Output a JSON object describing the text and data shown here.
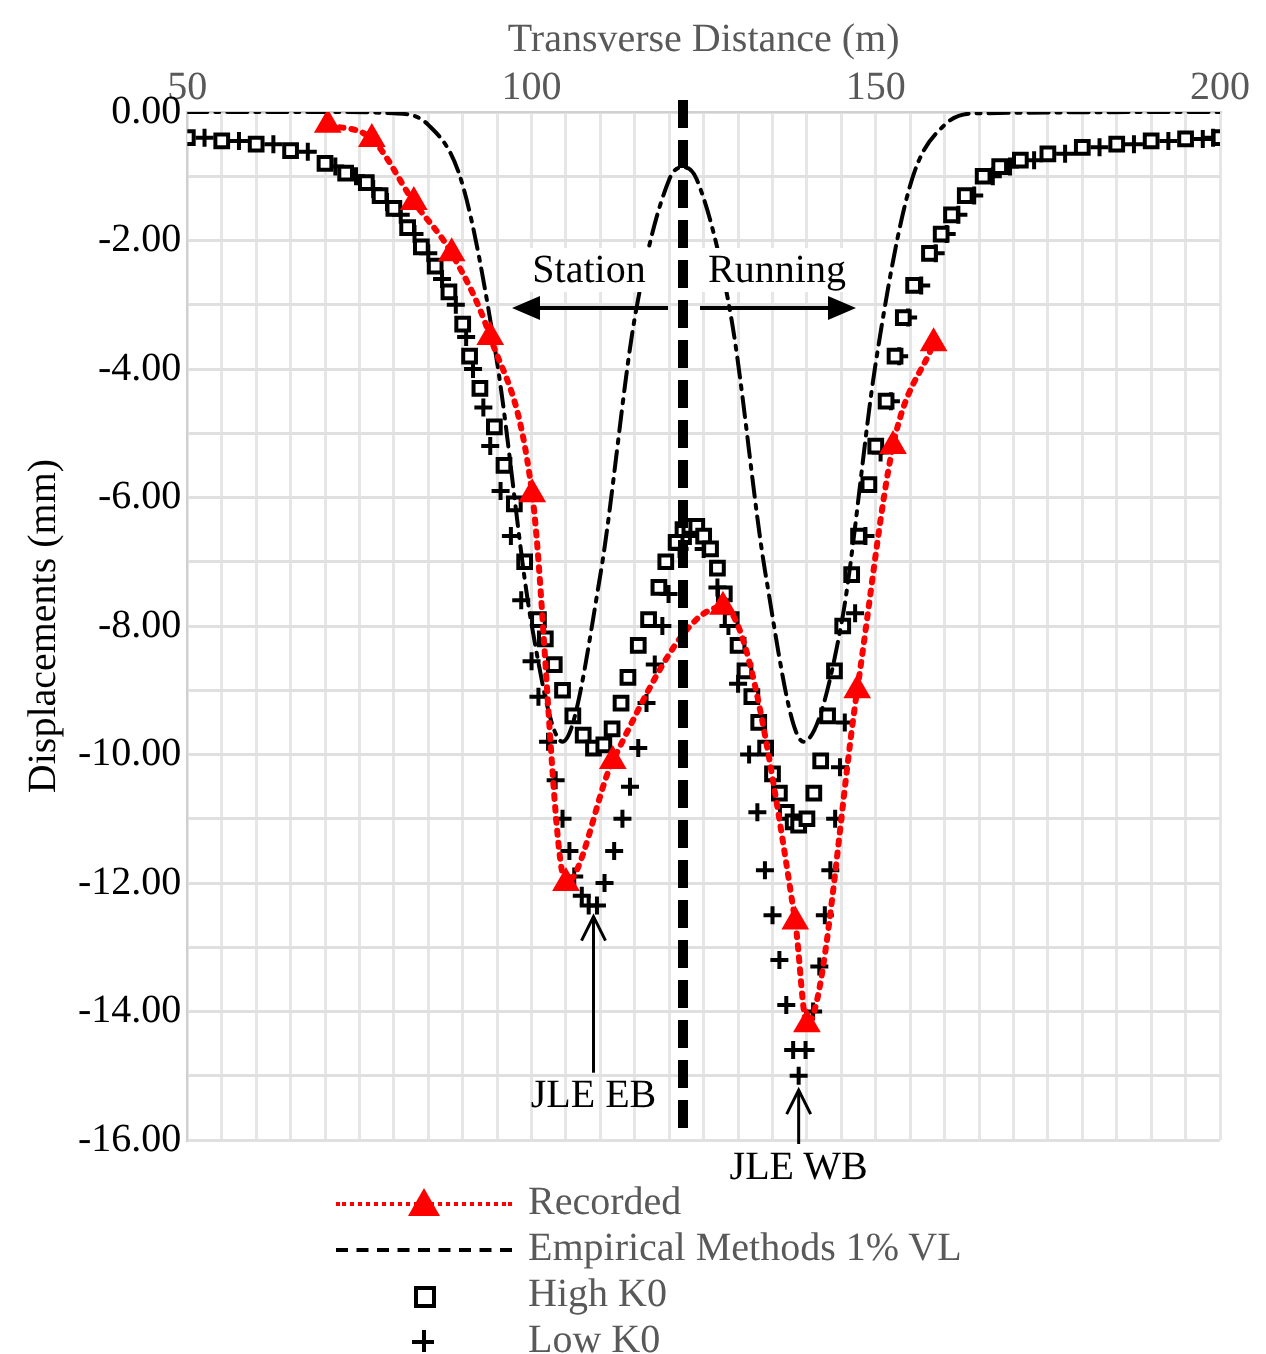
{
  "chart_data": {
    "type": "line",
    "xlabel": "Transverse Distance (m)",
    "ylabel": "Displacements (mm)",
    "xlim": [
      50,
      200
    ],
    "xticks": [
      50,
      {
        "value": 55,
        "label": null
      },
      {
        "value": 60,
        "label": null
      },
      {
        "value": 65,
        "label": null
      },
      {
        "value": 70,
        "label": null
      },
      {
        "value": 75,
        "label": null
      },
      {
        "value": 80,
        "label": null
      },
      {
        "value": 85,
        "label": null
      },
      {
        "value": 90,
        "label": null
      },
      {
        "value": 95,
        "label": null
      },
      100,
      {
        "value": 105,
        "label": null
      },
      {
        "value": 110,
        "label": null
      },
      {
        "value": 115,
        "label": null
      },
      {
        "value": 120,
        "label": null
      },
      {
        "value": 125,
        "label": null
      },
      {
        "value": 130,
        "label": null
      },
      {
        "value": 135,
        "label": null
      },
      {
        "value": 140,
        "label": null
      },
      {
        "value": 145,
        "label": null
      },
      150,
      {
        "value": 155,
        "label": null
      },
      {
        "value": 160,
        "label": null
      },
      {
        "value": 165,
        "label": null
      },
      {
        "value": 170,
        "label": null
      },
      {
        "value": 175,
        "label": null
      },
      {
        "value": 180,
        "label": null
      },
      {
        "value": 185,
        "label": null
      },
      {
        "value": 190,
        "label": null
      },
      {
        "value": 195,
        "label": null
      },
      200
    ],
    "ylim": [
      -16,
      0
    ],
    "yticks": [
      {
        "value": 0,
        "label": "0.00"
      },
      {
        "value": -1,
        "label": null
      },
      {
        "value": -2,
        "label": "-2.00"
      },
      {
        "value": -3,
        "label": null
      },
      {
        "value": -4,
        "label": "-4.00"
      },
      {
        "value": -5,
        "label": null
      },
      {
        "value": -6,
        "label": "-6.00"
      },
      {
        "value": -7,
        "label": null
      },
      {
        "value": -8,
        "label": "-8.00"
      },
      {
        "value": -9,
        "label": null
      },
      {
        "value": -10,
        "label": "-10.00"
      },
      {
        "value": -11,
        "label": null
      },
      {
        "value": -12,
        "label": "-12.00"
      },
      {
        "value": -13,
        "label": null
      },
      {
        "value": -14,
        "label": "-14.00"
      },
      {
        "value": -15,
        "label": null
      },
      {
        "value": -16,
        "label": "-16.00"
      }
    ],
    "grid": true,
    "legend": "bottom",
    "series": [
      {
        "name": "Recorded",
        "color": "#ff0000",
        "marker": "triangle",
        "line_style": "dotted",
        "x": [
          70.4,
          76.8,
          82.9,
          88.4,
          94,
          100.1,
          105,
          111.8,
          127.8,
          138.3,
          140,
          147.3,
          152.5,
          158.4
        ],
        "values": [
          -0.2,
          -0.42,
          -1.4,
          -2.2,
          -3.5,
          -5.95,
          -12.0,
          -10.1,
          -7.7,
          -12.6,
          -14.2,
          -9.0,
          -5.2,
          -3.6
        ]
      },
      {
        "name": "Empirical Methods 1% VL",
        "color": "#000000",
        "marker": "none",
        "line_style": "dashed",
        "x": [
          50,
          70,
          80,
          85,
          90,
          95,
          100,
          104.5,
          110,
          115,
          120,
          122,
          124,
          129,
          134,
          139.5,
          145,
          150,
          155,
          160,
          165,
          200
        ],
        "values": [
          0,
          0,
          -0.02,
          -0.2,
          -1.14,
          -3.9,
          -7.97,
          -9.8,
          -7.2,
          -3.2,
          -1.05,
          -0.86,
          -1.05,
          -3.2,
          -7.2,
          -9.8,
          -7.97,
          -3.9,
          -1.14,
          -0.2,
          -0.02,
          0
        ]
      },
      {
        "name": "High K0",
        "type": "scatter",
        "color": "#000000",
        "marker": "square",
        "x": [
          50,
          55,
          60,
          65,
          70,
          73,
          76,
          78,
          80,
          82,
          84,
          86,
          88,
          90,
          91,
          92.5,
          94.6,
          96,
          97.5,
          99,
          101,
          102,
          103.3,
          104.5,
          106,
          107.5,
          109,
          110.5,
          111.7,
          113,
          114,
          115.5,
          117,
          118.5,
          119.5,
          121,
          122,
          123,
          124,
          125,
          126,
          127,
          128,
          129,
          130,
          131,
          132,
          133,
          134,
          135,
          136,
          137,
          138,
          138.8,
          140,
          141,
          142,
          143,
          144,
          145.2,
          146.5,
          147.5,
          149,
          150,
          151.5,
          152.8,
          154,
          155.5,
          157.8,
          159.5,
          161,
          163,
          165.6,
          168,
          171,
          175,
          180,
          185,
          190,
          195,
          200
        ],
        "values": [
          -0.4,
          -0.45,
          -0.5,
          -0.6,
          -0.8,
          -0.95,
          -1.1,
          -1.3,
          -1.5,
          -1.8,
          -2.1,
          -2.4,
          -2.8,
          -3.3,
          -3.8,
          -4.3,
          -4.9,
          -5.5,
          -6.1,
          -7.0,
          -7.9,
          -8.2,
          -8.6,
          -9.0,
          -9.4,
          -9.7,
          -9.9,
          -9.85,
          -9.6,
          -9.2,
          -8.8,
          -8.3,
          -7.9,
          -7.4,
          -7.0,
          -6.7,
          -6.5,
          -6.45,
          -6.45,
          -6.6,
          -6.8,
          -7.1,
          -7.5,
          -7.9,
          -8.3,
          -8.7,
          -9.1,
          -9.5,
          -9.9,
          -10.3,
          -10.6,
          -10.9,
          -11.05,
          -11.1,
          -11.0,
          -10.6,
          -10.1,
          -9.4,
          -8.7,
          -8.0,
          -7.2,
          -6.6,
          -5.8,
          -5.2,
          -4.5,
          -3.8,
          -3.2,
          -2.7,
          -2.2,
          -1.9,
          -1.6,
          -1.3,
          -1.0,
          -0.85,
          -0.75,
          -0.65,
          -0.55,
          -0.5,
          -0.45,
          -0.42,
          -0.4
        ]
      },
      {
        "name": "Low K0",
        "type": "scatter",
        "color": "#000000",
        "marker": "cross",
        "x": [
          52.5,
          57.5,
          62.5,
          67.5,
          71.5,
          74.5,
          77,
          79,
          81,
          83,
          85,
          87,
          89,
          90.5,
          91.5,
          93,
          94,
          95.5,
          97,
          98.5,
          100,
          101,
          102.4,
          103.5,
          104.5,
          105.5,
          106.2,
          107.3,
          108.3,
          109.5,
          110.6,
          112,
          113.2,
          114.3,
          115.5,
          116.7,
          117.9,
          119,
          119.9,
          121.5,
          123,
          125,
          127,
          128.6,
          130,
          131.6,
          132.8,
          133.9,
          135,
          136,
          137,
          138,
          138.8,
          139.8,
          140.9,
          141.8,
          142.6,
          143.4,
          144.1,
          144.8,
          145.5,
          147,
          148.5,
          150.7,
          152.2,
          153.4,
          154.7,
          156.6,
          158.7,
          160.3,
          162,
          164.3,
          167,
          169.5,
          173,
          177.5,
          182.5,
          187.5,
          192.5,
          197.5,
          199
        ],
        "values": [
          -0.4,
          -0.45,
          -0.5,
          -0.62,
          -0.85,
          -1.0,
          -1.2,
          -1.4,
          -1.6,
          -1.9,
          -2.2,
          -2.6,
          -3.0,
          -3.5,
          -4.0,
          -4.6,
          -5.2,
          -5.9,
          -6.6,
          -7.6,
          -8.55,
          -9.1,
          -9.8,
          -10.4,
          -11.0,
          -11.5,
          -11.9,
          -12.2,
          -12.35,
          -12.35,
          -12.0,
          -11.5,
          -11.0,
          -10.5,
          -9.9,
          -9.2,
          -8.6,
          -8.0,
          -7.5,
          -6.8,
          -6.6,
          -6.8,
          -7.4,
          -8.0,
          -8.9,
          -10.0,
          -10.9,
          -11.8,
          -12.5,
          -13.2,
          -13.9,
          -14.6,
          -15.0,
          -14.6,
          -14.0,
          -13.3,
          -12.5,
          -11.8,
          -11.0,
          -10.2,
          -9.5,
          -7.8,
          -6.6,
          -5.3,
          -4.5,
          -3.8,
          -3.2,
          -2.7,
          -2.2,
          -1.9,
          -1.6,
          -1.3,
          -1.0,
          -0.85,
          -0.75,
          -0.65,
          -0.55,
          -0.5,
          -0.45,
          -0.42,
          -0.4
        ]
      }
    ],
    "ref_lines": [
      {
        "axis": "x",
        "value": 122,
        "color": "#000000",
        "line_style": "dashed"
      }
    ],
    "annotations": [
      "Station",
      "Running",
      {
        "text": "JLE EB",
        "x": 109,
        "y": -12.4
      },
      {
        "text": "JLE WB",
        "x": 138.8,
        "y": -15.1
      }
    ]
  }
}
